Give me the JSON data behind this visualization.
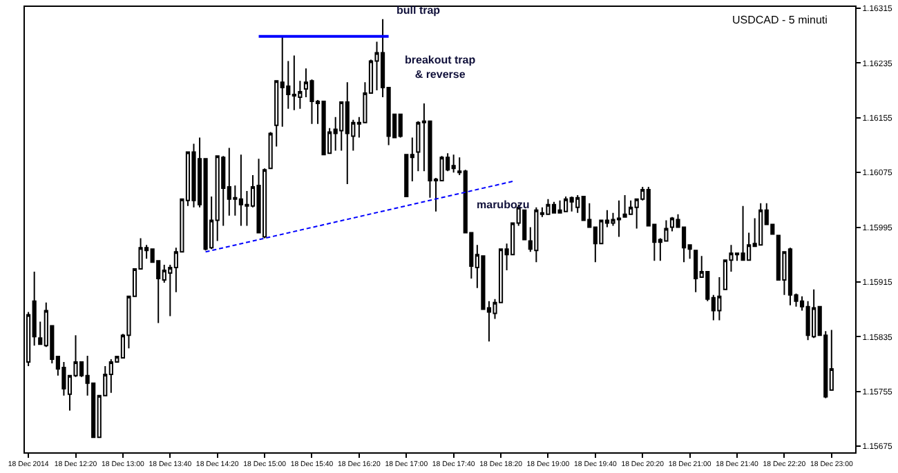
{
  "chart_data": {
    "type": "candlestick",
    "x": [
      "2014-12-18T11:40",
      "2014-12-18T11:45",
      "2014-12-18T11:50",
      "2014-12-18T11:55",
      "2014-12-18T12:00",
      "2014-12-18T12:05",
      "2014-12-18T12:10",
      "2014-12-18T12:15",
      "2014-12-18T12:20",
      "2014-12-18T12:25",
      "2014-12-18T12:30",
      "2014-12-18T12:35",
      "2014-12-18T12:40",
      "2014-12-18T12:45",
      "2014-12-18T12:50",
      "2014-12-18T12:55",
      "2014-12-18T13:00",
      "2014-12-18T13:05",
      "2014-12-18T13:10",
      "2014-12-18T13:15",
      "2014-12-18T13:20",
      "2014-12-18T13:25",
      "2014-12-18T13:30",
      "2014-12-18T13:35",
      "2014-12-18T13:40",
      "2014-12-18T13:45",
      "2014-12-18T13:50",
      "2014-12-18T13:55",
      "2014-12-18T14:00",
      "2014-12-18T14:05",
      "2014-12-18T14:10",
      "2014-12-18T14:15",
      "2014-12-18T14:20",
      "2014-12-18T14:25",
      "2014-12-18T14:30",
      "2014-12-18T14:35",
      "2014-12-18T14:40",
      "2014-12-18T14:45",
      "2014-12-18T14:50",
      "2014-12-18T14:55",
      "2014-12-18T15:00",
      "2014-12-18T15:05",
      "2014-12-18T15:10",
      "2014-12-18T15:15",
      "2014-12-18T15:20",
      "2014-12-18T15:25",
      "2014-12-18T15:30",
      "2014-12-18T15:35",
      "2014-12-18T15:40",
      "2014-12-18T15:45",
      "2014-12-18T15:50",
      "2014-12-18T15:55",
      "2014-12-18T16:00",
      "2014-12-18T16:05",
      "2014-12-18T16:10",
      "2014-12-18T16:15",
      "2014-12-18T16:20",
      "2014-12-18T16:25",
      "2014-12-18T16:30",
      "2014-12-18T16:35",
      "2014-12-18T16:40",
      "2014-12-18T16:45",
      "2014-12-18T16:50",
      "2014-12-18T16:55",
      "2014-12-18T17:00",
      "2014-12-18T17:05",
      "2014-12-18T17:10",
      "2014-12-18T17:15",
      "2014-12-18T17:20",
      "2014-12-18T17:25",
      "2014-12-18T17:30",
      "2014-12-18T17:35",
      "2014-12-18T17:40",
      "2014-12-18T17:45",
      "2014-12-18T17:50",
      "2014-12-18T17:55",
      "2014-12-18T18:00",
      "2014-12-18T18:05",
      "2014-12-18T18:10",
      "2014-12-18T18:15",
      "2014-12-18T18:20",
      "2014-12-18T18:25",
      "2014-12-18T18:30",
      "2014-12-18T18:35",
      "2014-12-18T18:40",
      "2014-12-18T18:45",
      "2014-12-18T18:50",
      "2014-12-18T18:55",
      "2014-12-18T19:00",
      "2014-12-18T19:05",
      "2014-12-18T19:10",
      "2014-12-18T19:15",
      "2014-12-18T19:20",
      "2014-12-18T19:25",
      "2014-12-18T19:30",
      "2014-12-18T19:35",
      "2014-12-18T19:40",
      "2014-12-18T19:45",
      "2014-12-18T19:50",
      "2014-12-18T19:55",
      "2014-12-18T20:00",
      "2014-12-18T20:05",
      "2014-12-18T20:10",
      "2014-12-18T20:15",
      "2014-12-18T20:20",
      "2014-12-18T20:25",
      "2014-12-18T20:30",
      "2014-12-18T20:35",
      "2014-12-18T20:40",
      "2014-12-18T20:45",
      "2014-12-18T20:50",
      "2014-12-18T20:55",
      "2014-12-18T21:00",
      "2014-12-18T21:05",
      "2014-12-18T21:10",
      "2014-12-18T21:15",
      "2014-12-18T21:20",
      "2014-12-18T21:25",
      "2014-12-18T21:30",
      "2014-12-18T21:35",
      "2014-12-18T21:40",
      "2014-12-18T21:45",
      "2014-12-18T21:50",
      "2014-12-18T21:55",
      "2014-12-18T22:00",
      "2014-12-18T22:05",
      "2014-12-18T22:10",
      "2014-12-18T22:15",
      "2014-12-18T22:20",
      "2014-12-18T22:25",
      "2014-12-18T22:30",
      "2014-12-18T22:35",
      "2014-12-18T22:40",
      "2014-12-18T22:45",
      "2014-12-18T22:50",
      "2014-12-18T22:55",
      "2014-12-18T23:00"
    ],
    "ohlc": [
      [
        1.15798,
        1.15871,
        1.15792,
        1.15867
      ],
      [
        1.15887,
        1.1593,
        1.15822,
        1.15835
      ],
      [
        1.15833,
        1.15857,
        1.15824,
        1.15824
      ],
      [
        1.15822,
        1.15885,
        1.1582,
        1.15873
      ],
      [
        1.15851,
        1.15851,
        1.15796,
        1.15802
      ],
      [
        1.15806,
        1.15806,
        1.15778,
        1.15788
      ],
      [
        1.1579,
        1.15798,
        1.15749,
        1.15759
      ],
      [
        1.15751,
        1.15778,
        1.15727,
        1.15778
      ],
      [
        1.15778,
        1.15837,
        1.15776,
        1.15798
      ],
      [
        1.15798,
        1.15798,
        1.15776,
        1.15778
      ],
      [
        1.15778,
        1.15807,
        1.15749,
        1.15767
      ],
      [
        1.15767,
        1.15767,
        1.15688,
        1.15688
      ],
      [
        1.15688,
        1.15749,
        1.15688,
        1.15749
      ],
      [
        1.15749,
        1.15792,
        1.15749,
        1.1578
      ],
      [
        1.1578,
        1.15802,
        1.15753,
        1.15798
      ],
      [
        1.15798,
        1.15807,
        1.15798,
        1.15806
      ],
      [
        1.15804,
        1.15839,
        1.15804,
        1.15837
      ],
      [
        1.15837,
        1.15894,
        1.15818,
        1.15894
      ],
      [
        1.15894,
        1.15934,
        1.15894,
        1.15934
      ],
      [
        1.15934,
        1.15979,
        1.15934,
        1.15965
      ],
      [
        1.15965,
        1.15969,
        1.15949,
        1.15961
      ],
      [
        1.15963,
        1.15963,
        1.15944,
        1.15944
      ],
      [
        1.15946,
        1.15946,
        1.15855,
        1.1592
      ],
      [
        1.15918,
        1.1594,
        1.15914,
        1.15932
      ],
      [
        1.15928,
        1.1594,
        1.15865,
        1.15936
      ],
      [
        1.15936,
        1.15965,
        1.159,
        1.15959
      ],
      [
        1.15959,
        1.16036,
        1.15959,
        1.16036
      ],
      [
        1.16034,
        1.16105,
        1.16026,
        1.16105
      ],
      [
        1.16105,
        1.16117,
        1.16024,
        1.16034
      ],
      [
        1.16095,
        1.16126,
        1.16024,
        1.16028
      ],
      [
        1.16095,
        1.16095,
        1.15961,
        1.15963
      ],
      [
        1.15965,
        1.1604,
        1.15963,
        1.16005
      ],
      [
        1.16005,
        1.16099,
        1.15975,
        1.16099
      ],
      [
        1.16097,
        1.16099,
        1.15997,
        1.16052
      ],
      [
        1.16054,
        1.16111,
        1.16012,
        1.16036
      ],
      [
        1.16038,
        1.16056,
        1.16012,
        1.16036
      ],
      [
        1.16036,
        1.16101,
        1.15997,
        1.16028
      ],
      [
        1.16028,
        1.16048,
        1.15997,
        1.16026
      ],
      [
        1.16026,
        1.16071,
        1.16024,
        1.16054
      ],
      [
        1.16056,
        1.16095,
        1.15987,
        1.15987
      ],
      [
        1.15981,
        1.16081,
        1.15979,
        1.16079
      ],
      [
        1.16081,
        1.16134,
        1.16081,
        1.16132
      ],
      [
        1.16144,
        1.16209,
        1.16113,
        1.16209
      ],
      [
        1.16207,
        1.16274,
        1.16142,
        1.16199
      ],
      [
        1.16201,
        1.16238,
        1.16168,
        1.16189
      ],
      [
        1.16189,
        1.16246,
        1.16166,
        1.16187
      ],
      [
        1.16185,
        1.16209,
        1.16168,
        1.16193
      ],
      [
        1.16197,
        1.16227,
        1.16185,
        1.16207
      ],
      [
        1.16209,
        1.16211,
        1.16146,
        1.16179
      ],
      [
        1.16179,
        1.16181,
        1.16146,
        1.16176
      ],
      [
        1.16179,
        1.16179,
        1.16101,
        1.16101
      ],
      [
        1.16103,
        1.1614,
        1.16103,
        1.16134
      ],
      [
        1.16138,
        1.16156,
        1.16107,
        1.16132
      ],
      [
        1.16136,
        1.16179,
        1.16107,
        1.16178
      ],
      [
        1.16178,
        1.16207,
        1.16058,
        1.16132
      ],
      [
        1.16128,
        1.16152,
        1.16107,
        1.16148
      ],
      [
        1.16146,
        1.16156,
        1.16126,
        1.16148
      ],
      [
        1.16148,
        1.16207,
        1.16148,
        1.16191
      ],
      [
        1.16191,
        1.1624,
        1.16191,
        1.16238
      ],
      [
        1.16238,
        1.16266,
        1.16195,
        1.1625
      ],
      [
        1.1625,
        1.16299,
        1.16185,
        1.16199
      ],
      [
        1.16199,
        1.16199,
        1.16115,
        1.16128
      ],
      [
        1.1616,
        1.1616,
        1.16126,
        1.16126
      ],
      [
        1.1616,
        1.1616,
        1.16126,
        1.16128
      ],
      [
        1.16101,
        1.16101,
        1.1604,
        1.1604
      ],
      [
        1.16097,
        1.16126,
        1.16062,
        1.16101
      ],
      [
        1.16105,
        1.1615,
        1.16077,
        1.16148
      ],
      [
        1.1615,
        1.16176,
        1.16077,
        1.16148
      ],
      [
        1.1615,
        1.1615,
        1.16038,
        1.16063
      ],
      [
        1.16063,
        1.16067,
        1.16018,
        1.16065
      ],
      [
        1.16063,
        1.16099,
        1.16063,
        1.16097
      ],
      [
        1.16097,
        1.16103,
        1.16077,
        1.16079
      ],
      [
        1.16081,
        1.16101,
        1.16075,
        1.16085
      ],
      [
        1.16077,
        1.16097,
        1.16071,
        1.16075
      ],
      [
        1.16077,
        1.16079,
        1.15987,
        1.15987
      ],
      [
        1.15987,
        1.15987,
        1.1592,
        1.15938
      ],
      [
        1.15936,
        1.15969,
        1.15906,
        1.15955
      ],
      [
        1.15953,
        1.15953,
        1.15875,
        1.15875
      ],
      [
        1.15877,
        1.15887,
        1.15828,
        1.15871
      ],
      [
        1.15869,
        1.1589,
        1.15861,
        1.15885
      ],
      [
        1.15885,
        1.15963,
        1.15885,
        1.15963
      ],
      [
        1.15963,
        1.15971,
        1.15932,
        1.15955
      ],
      [
        1.15955,
        1.16001,
        1.15955,
        1.16001
      ],
      [
        1.16001,
        1.16028,
        1.15997,
        1.16024
      ],
      [
        1.1602,
        1.1602,
        1.15977,
        1.15977
      ],
      [
        1.15975,
        1.15995,
        1.15959,
        1.15963
      ],
      [
        1.15961,
        1.16024,
        1.15944,
        1.1602
      ],
      [
        1.16014,
        1.16024,
        1.1601,
        1.16016
      ],
      [
        1.16014,
        1.16036,
        1.16014,
        1.16028
      ],
      [
        1.16028,
        1.16032,
        1.16016,
        1.16016
      ],
      [
        1.1602,
        1.16034,
        1.16016,
        1.16016
      ],
      [
        1.16018,
        1.1604,
        1.16018,
        1.16036
      ],
      [
        1.16038,
        1.1604,
        1.16018,
        1.16032
      ],
      [
        1.16024,
        1.16042,
        1.16016,
        1.16038
      ],
      [
        1.1604,
        1.1604,
        1.16005,
        1.16005
      ],
      [
        1.16006,
        1.1603,
        1.15995,
        1.15995
      ],
      [
        1.15995,
        1.15995,
        1.15944,
        1.15971
      ],
      [
        1.15971,
        1.16006,
        1.15971,
        1.16005
      ],
      [
        1.16005,
        1.1602,
        1.15995,
        1.16001
      ],
      [
        1.16001,
        1.16016,
        1.15997,
        1.16006
      ],
      [
        1.16006,
        1.16034,
        1.15981,
        1.16008
      ],
      [
        1.1601,
        1.16042,
        1.1601,
        1.16014
      ],
      [
        1.16014,
        1.16034,
        1.16014,
        1.16024
      ],
      [
        1.16024,
        1.16036,
        1.15993,
        1.16036
      ],
      [
        1.16036,
        1.16054,
        1.16034,
        1.1605
      ],
      [
        1.1605,
        1.16054,
        1.15997,
        1.15997
      ],
      [
        1.15999,
        1.15999,
        1.15946,
        1.15973
      ],
      [
        1.15973,
        1.15979,
        1.15946,
        1.15977
      ],
      [
        1.15975,
        1.16005,
        1.15975,
        1.15993
      ],
      [
        1.15995,
        1.1601,
        1.15989,
        1.16008
      ],
      [
        1.16006,
        1.16014,
        1.15995,
        1.15995
      ],
      [
        1.15995,
        1.15995,
        1.15944,
        1.15965
      ],
      [
        1.15969,
        1.15969,
        1.15949,
        1.15963
      ],
      [
        1.15961,
        1.15961,
        1.159,
        1.1592
      ],
      [
        1.15922,
        1.15953,
        1.15922,
        1.1593
      ],
      [
        1.1593,
        1.1593,
        1.15887,
        1.1589
      ],
      [
        1.15892,
        1.15896,
        1.15859,
        1.15873
      ],
      [
        1.15873,
        1.15922,
        1.15859,
        1.15894
      ],
      [
        1.15904,
        1.15947,
        1.15904,
        1.15947
      ],
      [
        1.15947,
        1.15969,
        1.1593,
        1.15957
      ],
      [
        1.15955,
        1.15957,
        1.15946,
        1.15957
      ],
      [
        1.15957,
        1.16026,
        1.15947,
        1.15947
      ],
      [
        1.15947,
        1.15987,
        1.15946,
        1.15969
      ],
      [
        1.15971,
        1.16008,
        1.15967,
        1.15967
      ],
      [
        1.15969,
        1.1603,
        1.15969,
        1.1602
      ],
      [
        1.1602,
        1.1603,
        1.15999,
        1.15999
      ],
      [
        1.15999,
        1.15999,
        1.15985,
        1.15985
      ],
      [
        1.15983,
        1.15983,
        1.15918,
        1.15918
      ],
      [
        1.15918,
        1.15959,
        1.15896,
        1.15959
      ],
      [
        1.15963,
        1.15965,
        1.15881,
        1.15896
      ],
      [
        1.15896,
        1.15898,
        1.15879,
        1.15887
      ],
      [
        1.15887,
        1.15894,
        1.15873,
        1.15879
      ],
      [
        1.15879,
        1.15887,
        1.1583,
        1.15837
      ],
      [
        1.15835,
        1.15904,
        1.15833,
        1.15877
      ],
      [
        1.15879,
        1.15879,
        1.15837,
        1.15837
      ],
      [
        1.15837,
        1.15843,
        1.15745,
        1.15747
      ],
      [
        1.15757,
        1.15845,
        1.15757,
        1.15788
      ]
    ],
    "series": [
      {
        "type": "line",
        "color": "#0000ff",
        "line_style": "solid",
        "x": [
          "2014-12-18T14:55",
          "2014-12-18T16:45"
        ],
        "values": [
          1.16274,
          1.16274
        ]
      },
      {
        "type": "line",
        "color": "#0000ff",
        "line_style": "dashed",
        "x": [
          "2014-12-18T14:10",
          "2014-12-18T18:30"
        ],
        "values": [
          1.15959,
          1.16062
        ]
      }
    ],
    "xlim": [
      "2014-12-18T11:37",
      "2014-12-18T23:20"
    ],
    "xticks": [
      {
        "value": "2014-12-18T11:40",
        "label": "18 Dec 2014"
      },
      {
        "value": "2014-12-18T12:20",
        "label": "18 Dec 12:20"
      },
      {
        "value": "2014-12-18T13:00",
        "label": "18 Dec 13:00"
      },
      {
        "value": "2014-12-18T13:40",
        "label": "18 Dec 13:40"
      },
      {
        "value": "2014-12-18T14:20",
        "label": "18 Dec 14:20"
      },
      {
        "value": "2014-12-18T15:00",
        "label": "18 Dec 15:00"
      },
      {
        "value": "2014-12-18T15:40",
        "label": "18 Dec 15:40"
      },
      {
        "value": "2014-12-18T16:20",
        "label": "18 Dec 16:20"
      },
      {
        "value": "2014-12-18T17:00",
        "label": "18 Dec 17:00"
      },
      {
        "value": "2014-12-18T17:40",
        "label": "18 Dec 17:40"
      },
      {
        "value": "2014-12-18T18:20",
        "label": "18 Dec 18:20"
      },
      {
        "value": "2014-12-18T19:00",
        "label": "18 Dec 19:00"
      },
      {
        "value": "2014-12-18T19:40",
        "label": "18 Dec 19:40"
      },
      {
        "value": "2014-12-18T20:20",
        "label": "18 Dec 20:20"
      },
      {
        "value": "2014-12-18T21:00",
        "label": "18 Dec 21:00"
      },
      {
        "value": "2014-12-18T21:40",
        "label": "18 Dec 21:40"
      },
      {
        "value": "2014-12-18T22:20",
        "label": "18 Dec 22:20"
      },
      {
        "value": "2014-12-18T23:00",
        "label": "18 Dec 23:00"
      }
    ],
    "ylim": [
      1.15666,
      1.16317
    ],
    "yticks": [
      1.15675,
      1.15755,
      1.15835,
      1.15915,
      1.15995,
      1.16075,
      1.16155,
      1.16235,
      1.16315
    ],
    "annotations": [
      "USDCAD - 5 minuti",
      {
        "text": "bull trap",
        "x": "2014-12-18T16:40",
        "y": 1.16299
      },
      "breakout trap\n& reverse",
      "marubozu"
    ]
  }
}
